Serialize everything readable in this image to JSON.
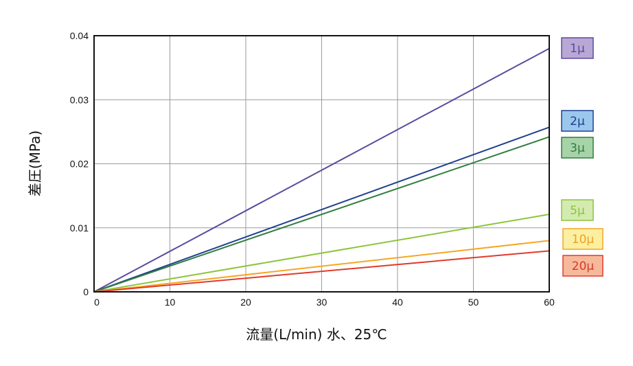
{
  "chart_data": {
    "type": "line",
    "title": "",
    "xlabel": "流量(L/min) 水、25℃",
    "ylabel": "差圧(MPa)",
    "xlim": [
      0,
      60
    ],
    "ylim": [
      0,
      0.04
    ],
    "xticks": [
      0,
      10,
      20,
      30,
      40,
      50,
      60
    ],
    "yticks": [
      0,
      0.01,
      0.02,
      0.03,
      0.04
    ],
    "ytick_labels": [
      "0",
      "0.01",
      "0.02",
      "0.03",
      "0.04"
    ],
    "xtick_labels": [
      "0",
      "10",
      "20",
      "30",
      "40",
      "50",
      "60"
    ],
    "grid": true,
    "legend_placement": "right",
    "series": [
      {
        "name": "1μ",
        "x": [
          0,
          60
        ],
        "y": [
          0,
          0.038
        ],
        "color": "#5b4a9e",
        "label_fill": "#b9a7d6",
        "label_text_color": "#5b4a9e"
      },
      {
        "name": "2μ",
        "x": [
          0,
          60
        ],
        "y": [
          0,
          0.0257
        ],
        "color": "#1f3f8f",
        "label_fill": "#9cc7ec",
        "label_text_color": "#1f3f8f"
      },
      {
        "name": "3μ",
        "x": [
          0,
          60
        ],
        "y": [
          0,
          0.0242
        ],
        "color": "#2f7d3e",
        "label_fill": "#a7d3a9",
        "label_text_color": "#2f7d3e"
      },
      {
        "name": "5μ",
        "x": [
          0,
          60
        ],
        "y": [
          0,
          0.0121
        ],
        "color": "#8cc43a",
        "label_fill": "#d3ebb0",
        "label_text_color": "#8cc43a"
      },
      {
        "name": "10μ",
        "x": [
          0,
          60
        ],
        "y": [
          0,
          0.008
        ],
        "color": "#f5a623",
        "label_fill": "#fbefa2",
        "label_text_color": "#f0a020"
      },
      {
        "name": "20μ",
        "x": [
          0,
          60
        ],
        "y": [
          0,
          0.0064
        ],
        "color": "#e03a2a",
        "label_fill": "#f7b99b",
        "label_text_color": "#d43a2a"
      }
    ]
  }
}
